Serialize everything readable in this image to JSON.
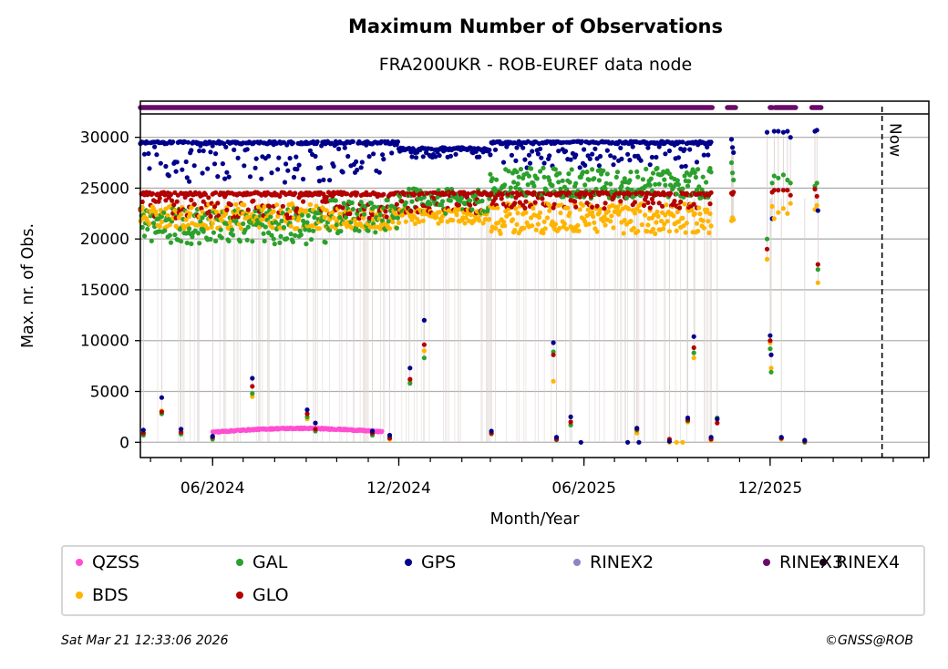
{
  "footer": {
    "timestamp": "Sat Mar 21 12:33:06 2026",
    "copyright": "©GNSS@ROB"
  },
  "chart_data": {
    "type": "scatter",
    "title": "Maximum Number of Observations",
    "subtitle": "FRA200UKR - ROB-EUREF data node",
    "xlabel": "Month/Year",
    "ylabel": "Max. nr. of Obs.",
    "x_type": "date",
    "xlim": [
      "2024-03-22",
      "2026-05-06"
    ],
    "ylim": [
      -1500,
      32300
    ],
    "x_major_ticks": [
      {
        "date": "2024-06-01",
        "label": "06/2024"
      },
      {
        "date": "2024-12-01",
        "label": "12/2024"
      },
      {
        "date": "2025-06-01",
        "label": "06/2025"
      },
      {
        "date": "2025-12-01",
        "label": "12/2025"
      }
    ],
    "x_minor_ticks": "monthly",
    "y_ticks": [
      0,
      5000,
      10000,
      15000,
      20000,
      25000,
      30000
    ],
    "grid": "horizontal",
    "now_marker": {
      "date": "2026-03-21",
      "label": "Now"
    },
    "legend_position": "below",
    "legend_columns": 6,
    "series": [
      {
        "name": "QZSS",
        "color": "#ff4fd2"
      },
      {
        "name": "GAL",
        "color": "#2ca02c"
      },
      {
        "name": "GPS",
        "color": "#00008b"
      },
      {
        "name": "RINEX2",
        "color": "#8a85c6"
      },
      {
        "name": "RINEX3",
        "color": "#6a0a6a"
      },
      {
        "name": "RINEX4",
        "color": "#1a0518"
      },
      {
        "name": "BDS",
        "color": "#ffb400"
      },
      {
        "name": "GLO",
        "color": "#b30000"
      }
    ],
    "segments": [
      {
        "from": "2024-03-22",
        "to": "2024-09-25",
        "GPS": [
          29600,
          25500
        ],
        "GLO": [
          24600,
          22000
        ],
        "GAL": [
          23000,
          19500
        ],
        "BDS": [
          23500,
          21000
        ]
      },
      {
        "from": "2024-09-25",
        "to": "2024-12-01",
        "GPS": [
          29600,
          26500
        ],
        "GLO": [
          24600,
          22000
        ],
        "GAL": [
          24000,
          20500
        ],
        "BDS": [
          23000,
          21000
        ]
      },
      {
        "from": "2024-12-01",
        "to": "2025-03-01",
        "GPS": [
          29000,
          28000
        ],
        "GLO": [
          24600,
          22500
        ],
        "GAL": [
          25000,
          22500
        ],
        "BDS": [
          23000,
          21500
        ]
      },
      {
        "from": "2025-03-01",
        "to": "2025-10-05",
        "GPS": [
          29600,
          27000
        ],
        "GLO": [
          24600,
          23000
        ],
        "GAL": [
          27000,
          24000
        ],
        "BDS": [
          23500,
          20500
        ]
      }
    ],
    "qzss_band": {
      "from": "2024-06-01",
      "to": "2024-11-15",
      "values": [
        1000,
        1350,
        1100
      ]
    },
    "rinex3_coverage": [
      [
        "2024-03-22",
        "2025-10-05"
      ],
      [
        "2025-10-20",
        "2025-10-28"
      ],
      [
        "2025-12-01",
        "2025-12-03"
      ],
      [
        "2025-12-06",
        "2025-12-26"
      ],
      [
        "2026-01-11",
        "2026-01-20"
      ]
    ],
    "late_points": [
      {
        "date": "2025-10-24",
        "GPS": 29800,
        "GAL": 27500,
        "GLO": 24500,
        "BDS": 21800
      },
      {
        "date": "2025-10-25",
        "GPS": 29000,
        "GAL": 26500,
        "GLO": 24400,
        "BDS": 22100
      },
      {
        "date": "2025-10-26",
        "GPS": 28500,
        "GAL": 25800,
        "GLO": 24600,
        "BDS": 21900
      },
      {
        "date": "2025-11-28",
        "GPS": 30500,
        "GAL": 20000,
        "GLO": 19000,
        "BDS": 18000
      },
      {
        "date": "2025-12-03",
        "GPS": 22000,
        "GAL": 25500,
        "GLO": 24600,
        "BDS": 23200
      },
      {
        "date": "2025-12-05",
        "GPS": 30600,
        "GAL": 26200,
        "GLO": 24800,
        "BDS": 22000
      },
      {
        "date": "2025-12-09",
        "GPS": 30600,
        "GAL": 26000,
        "GLO": 24800,
        "BDS": 22600
      },
      {
        "date": "2025-12-14",
        "GPS": 30500,
        "GAL": 26300,
        "GLO": 24800,
        "BDS": 23000
      },
      {
        "date": "2025-12-18",
        "GPS": 30600,
        "GAL": 25800,
        "GLO": 24800,
        "BDS": 22500
      },
      {
        "date": "2025-12-21",
        "GPS": 30000,
        "GAL": 25500,
        "GLO": 24300,
        "BDS": 23500
      },
      {
        "date": "2026-01-14",
        "GPS": 30600,
        "GAL": 25200,
        "GLO": 24900,
        "BDS": 22900
      },
      {
        "date": "2026-01-16",
        "GPS": 30700,
        "GAL": 25500,
        "GLO": 24200,
        "BDS": 23300
      },
      {
        "date": "2026-01-17",
        "GPS": 22800,
        "GAL": 17000,
        "GLO": 17500,
        "BDS": 15700
      }
    ],
    "low_outliers": [
      {
        "date": "2024-03-25",
        "GPS": 1200,
        "GLO": 900,
        "GAL": 700,
        "BDS": 900
      },
      {
        "date": "2024-04-12",
        "GPS": 4400,
        "GLO": 3000,
        "GAL": 2800,
        "BDS": 3100
      },
      {
        "date": "2024-05-01",
        "GPS": 1300,
        "GLO": 1000,
        "GAL": 800,
        "BDS": 900
      },
      {
        "date": "2024-06-01",
        "GPS": 600,
        "GLO": 500,
        "GAL": 300,
        "BDS": 400
      },
      {
        "date": "2024-07-10",
        "GPS": 6300,
        "GLO": 5500,
        "GAL": 4800,
        "BDS": 4500
      },
      {
        "date": "2024-09-02",
        "GPS": 3200,
        "GLO": 2800,
        "GAL": 2500,
        "BDS": 2300
      },
      {
        "date": "2024-09-10",
        "GPS": 1900,
        "GLO": 1300,
        "GAL": 1100,
        "BDS": 1200
      },
      {
        "date": "2024-11-05",
        "GPS": 1100,
        "GLO": 900,
        "GAL": 700,
        "BDS": 800
      },
      {
        "date": "2024-11-22",
        "GPS": 700,
        "GLO": 400,
        "GAL": 500,
        "BDS": 300
      },
      {
        "date": "2024-12-12",
        "GPS": 7300,
        "GLO": 6200,
        "GAL": 5800,
        "BDS": 6000
      },
      {
        "date": "2024-12-26",
        "GPS": 12000,
        "GLO": 9600,
        "GAL": 8300,
        "BDS": 9000
      },
      {
        "date": "2025-03-02",
        "GPS": 1100,
        "GLO": 900,
        "GAL": 850,
        "BDS": 800
      },
      {
        "date": "2025-05-02",
        "GPS": 9800,
        "GLO": 8600,
        "GAL": 8900,
        "BDS": 6000
      },
      {
        "date": "2025-05-05",
        "GPS": 500,
        "GLO": 300,
        "GAL": 250,
        "BDS": 350
      },
      {
        "date": "2025-05-19",
        "GPS": 2500,
        "GLO": 2000,
        "GAL": 1700,
        "BDS": 1700
      },
      {
        "date": "2025-05-29",
        "GPS": 0
      },
      {
        "date": "2025-07-14",
        "GPS": 0
      },
      {
        "date": "2025-07-23",
        "GPS": 1400,
        "GLO": 1300,
        "GAL": 1200,
        "BDS": 900
      },
      {
        "date": "2025-07-25",
        "GPS": 0
      },
      {
        "date": "2025-08-24",
        "GPS": 100,
        "GLO": 300,
        "BDS": 0
      },
      {
        "date": "2025-08-31",
        "BDS": 0
      },
      {
        "date": "2025-09-06",
        "BDS": 0
      },
      {
        "date": "2025-09-11",
        "GPS": 2400,
        "GLO": 2200,
        "GAL": 2100,
        "BDS": 2000
      },
      {
        "date": "2025-09-17",
        "GPS": 10400,
        "GLO": 9300,
        "GAL": 8800,
        "BDS": 8300
      },
      {
        "date": "2025-10-04",
        "GPS": 500,
        "GLO": 300,
        "GAL": 400,
        "BDS": 200
      },
      {
        "date": "2025-10-10",
        "GPS": 2300,
        "GLO": 1900,
        "GAL": 2400,
        "BDS": 2200
      },
      {
        "date": "2025-12-01",
        "GPS": 10500,
        "GLO": 10000,
        "GAL": 9200,
        "BDS": 9800
      },
      {
        "date": "2025-12-02",
        "GPS": 8600,
        "GLO": 8600,
        "GAL": 6900,
        "BDS": 7300
      },
      {
        "date": "2025-12-12",
        "GPS": 500,
        "GLO": 400,
        "GAL": 400,
        "BDS": 300
      },
      {
        "date": "2026-01-04",
        "GPS": 200,
        "GLO": 100,
        "GAL": 0,
        "BDS": 150
      }
    ]
  }
}
